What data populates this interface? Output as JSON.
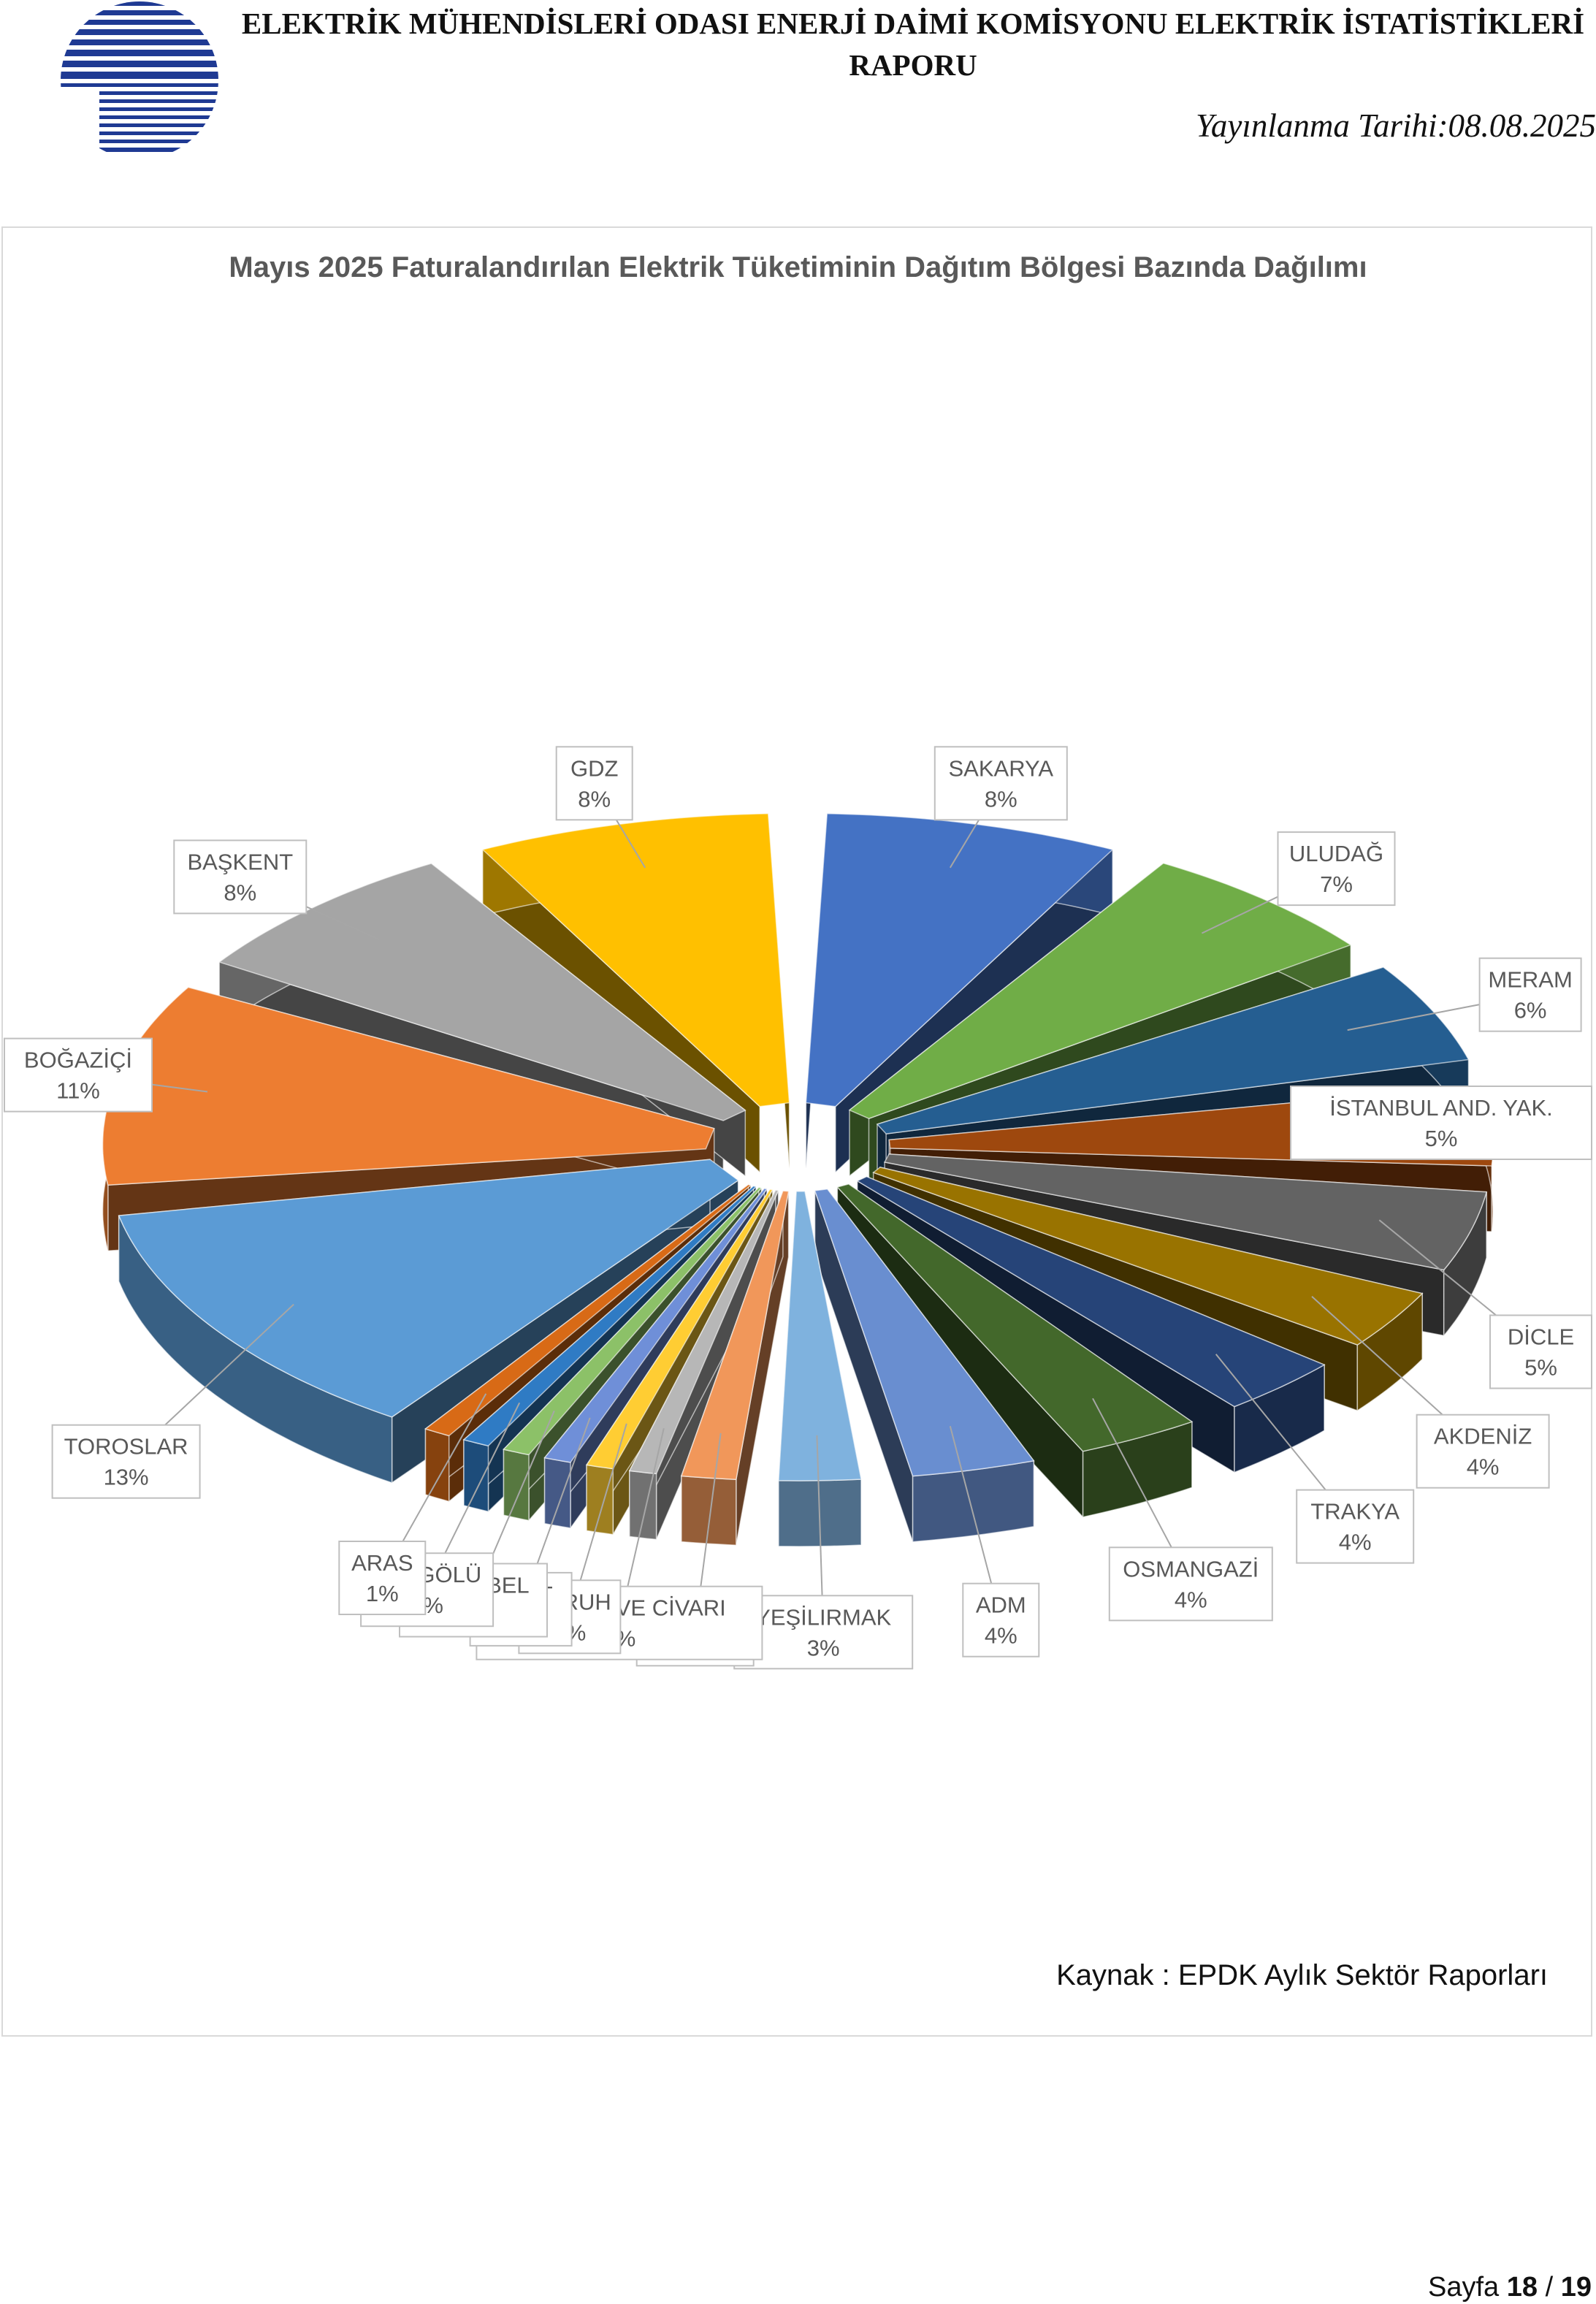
{
  "header": {
    "title": "ELEKTRİK MÜHENDİSLERİ ODASI ENERJİ DAİMİ KOMİSYONU ELEKTRİK İSTATİSTİKLERİ RAPORU",
    "date": "Yayınlanma Tarihi:08.08.2025"
  },
  "chart_data": {
    "type": "pie",
    "title": "Mayıs 2025 Faturalandırılan Elektrik Tüketiminin Dağıtım Bölgesi Bazında Dağılımı",
    "style": "3d-exploded",
    "categories": [
      "SAKARYA",
      "ULUDAĞ",
      "MERAM",
      "İSTANBUL AND. YAK.",
      "DİCLE",
      "AKDENİZ",
      "TRAKYA",
      "OSMANGAZİ",
      "ADM",
      "YEŞİLIRMAK",
      "AKEDAŞ",
      "KAYSERİ VE CİVARI",
      "ÇORUH",
      "FIRAT",
      "ÇAMLIBEL",
      "VANGÖLÜ",
      "ARAS",
      "TOROSLAR",
      "BOĞAZİÇİ",
      "BAŞKENT",
      "GDZ"
    ],
    "values": [
      8,
      7,
      6,
      5,
      5,
      4,
      4,
      4,
      4,
      3,
      2,
      1,
      1,
      1,
      1,
      1,
      1,
      13,
      11,
      8,
      8
    ],
    "labels": [
      "8%",
      "7%",
      "6%",
      "5%",
      "5%",
      "4%",
      "4%",
      "4%",
      "4%",
      "3%",
      "2%",
      "1%",
      "1%",
      "1%",
      "1%",
      "1%",
      "1%",
      "13%",
      "11%",
      "8%",
      "8%"
    ],
    "colors": [
      "#4472C4",
      "#70AD47",
      "#255E91",
      "#9E480E",
      "#636363",
      "#997300",
      "#264478",
      "#43682B",
      "#698ED0",
      "#7FB2DE",
      "#F1975A",
      "#B7B7B7",
      "#FFCD33",
      "#6F8FD8",
      "#8CC168",
      "#2F7BC4",
      "#D86A16",
      "#5B9BD5",
      "#ED7D31",
      "#A5A5A5",
      "#FFC000"
    ]
  },
  "footer": {
    "source": "Kaynak : EPDK Aylık Sektör Raporları",
    "page_prefix": "Sayfa ",
    "page_current": "18",
    "page_sep": " / ",
    "page_total": "19"
  }
}
